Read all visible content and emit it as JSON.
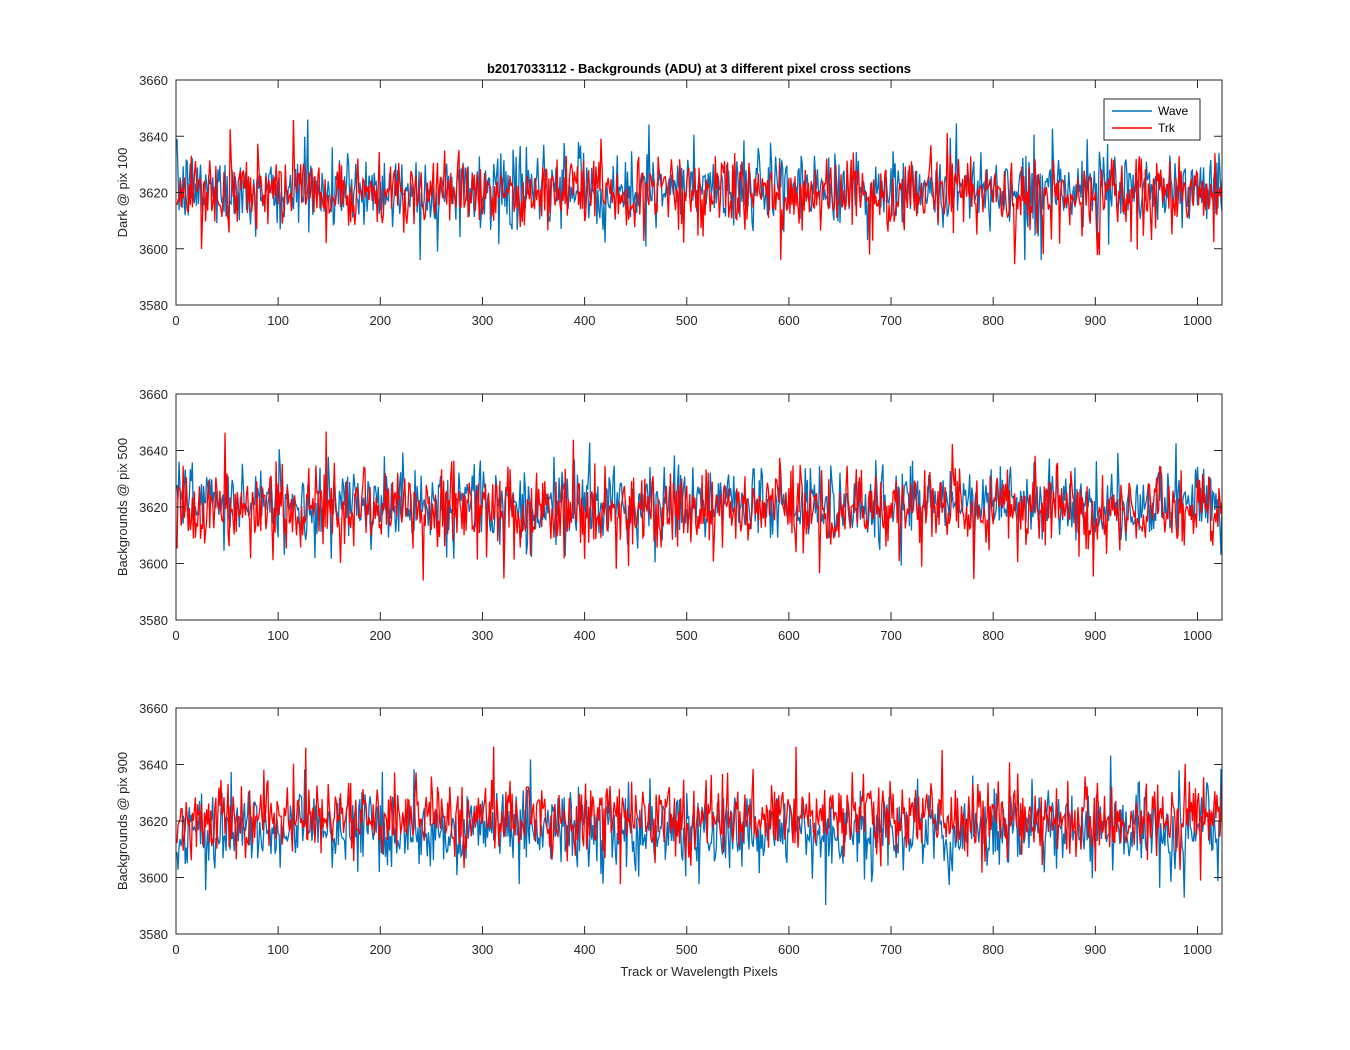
{
  "chart_data": {
    "type": "line",
    "title": "b2017033112 - Backgrounds (ADU) at 3 different pixel cross sections",
    "xlabel": "Track or Wavelength Pixels",
    "legend": {
      "placement": "top-right",
      "entries": [
        "Wave",
        "Trk"
      ]
    },
    "colors": {
      "Wave": "#0072BD",
      "Trk": "#FF0000"
    },
    "xlim": [
      0,
      1024
    ],
    "xticks": [
      0,
      100,
      200,
      300,
      400,
      500,
      600,
      700,
      800,
      900,
      1000
    ],
    "grid": false,
    "n_points": 1024,
    "subplots": [
      {
        "ylabel": "Dark @ pix 100",
        "ylim": [
          3580,
          3660
        ],
        "yticks": [
          3580,
          3600,
          3620,
          3640,
          3660
        ],
        "series": [
          {
            "name": "Wave",
            "mean": 3621,
            "std": 6.5,
            "min": 3596,
            "max": 3650
          },
          {
            "name": "Trk",
            "mean": 3620,
            "std": 6.5,
            "min": 3588,
            "max": 3648
          }
        ]
      },
      {
        "ylabel": "Backgrounds @ pix 500",
        "ylim": [
          3580,
          3660
        ],
        "yticks": [
          3580,
          3600,
          3620,
          3640,
          3660
        ],
        "series": [
          {
            "name": "Wave",
            "mean": 3621,
            "std": 6.5,
            "min": 3598,
            "max": 3651
          },
          {
            "name": "Trk",
            "mean": 3619,
            "std": 7,
            "min": 3594,
            "max": 3649
          }
        ]
      },
      {
        "ylabel": "Backgrounds @ pix 900",
        "ylim": [
          3580,
          3660
        ],
        "yticks": [
          3580,
          3600,
          3620,
          3640,
          3660
        ],
        "series": [
          {
            "name": "Wave",
            "mean": 3617,
            "std": 7,
            "min": 3589,
            "max": 3651
          },
          {
            "name": "Trk",
            "mean": 3621,
            "std": 6.5,
            "min": 3595,
            "max": 3647
          }
        ]
      }
    ]
  }
}
